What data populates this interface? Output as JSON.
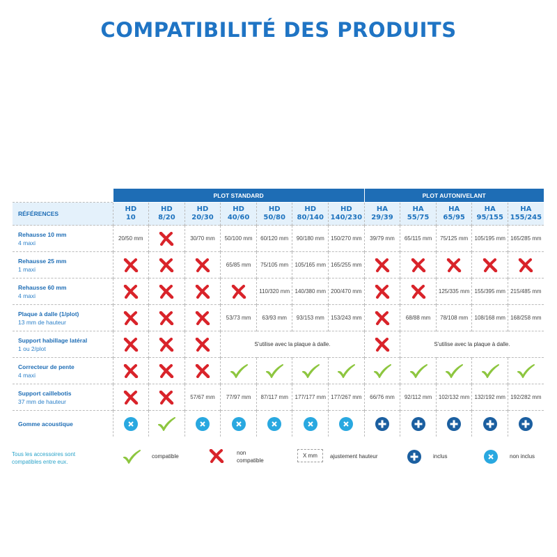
{
  "title": "COMPATIBILITÉ DES PRODUITS",
  "colors": {
    "title": "#1f74c4",
    "header": "#1e6db5",
    "cross": "#d9232a",
    "check": "#8dc63f",
    "inclus": "#1b5fa0",
    "non_inclus": "#29a8e0"
  },
  "groups": [
    {
      "label": "PLOT STANDARD",
      "span": 7
    },
    {
      "label": "PLOT AUTONIVELANT",
      "span": 5
    }
  ],
  "references_label": "RÉFÉRENCES",
  "columns": [
    [
      "HD",
      "10"
    ],
    [
      "HD",
      "8/20"
    ],
    [
      "HD",
      "20/30"
    ],
    [
      "HD",
      "40/60"
    ],
    [
      "HD",
      "50/80"
    ],
    [
      "HD",
      "80/140"
    ],
    [
      "HD",
      "140/230"
    ],
    [
      "HA",
      "29/39"
    ],
    [
      "HA",
      "55/75"
    ],
    [
      "HA",
      "65/95"
    ],
    [
      "HA",
      "95/155"
    ],
    [
      "HA",
      "155/245"
    ]
  ],
  "rows": [
    {
      "label": "Rehausse 10 mm",
      "sub": "4 maxi",
      "cells": [
        "20/50 mm",
        "x",
        "30/70 mm",
        "50/100 mm",
        "60/120 mm",
        "90/180 mm",
        "150/270 mm",
        "39/79 mm",
        "65/115 mm",
        "75/125 mm",
        "105/195 mm",
        "165/285 mm"
      ]
    },
    {
      "label": "Rehausse 25 mm",
      "sub": "1 maxi",
      "cells": [
        "x",
        "x",
        "x",
        "65/85 mm",
        "75/105 mm",
        "105/165 mm",
        "165/255 mm",
        "x",
        "x",
        "x",
        "x",
        "x"
      ]
    },
    {
      "label": "Rehausse 60 mm",
      "sub": "4 maxi",
      "cells": [
        "x",
        "x",
        "x",
        "x",
        "110/320 mm",
        "140/380 mm",
        "200/470 mm",
        "x",
        "x",
        "125/335 mm",
        "155/395 mm",
        "215/485 mm"
      ]
    },
    {
      "label": "Plaque à dalle (1/plot)",
      "sub": "13 mm de hauteur",
      "cells": [
        "x",
        "x",
        "x",
        "53/73 mm",
        "63/93 mm",
        "93/153 mm",
        "153/243 mm",
        "x",
        "68/88 mm",
        "78/108 mm",
        "108/168 mm",
        "168/258 mm"
      ]
    },
    {
      "label": "Support habillage latéral",
      "sub": "1 ou 2/plot",
      "cells": [
        "x",
        "x",
        "x",
        {
          "text": "S'utilise avec la plaque à dalle.",
          "span": 4
        },
        "x",
        {
          "text": "S'utilise avec la plaque à dalle.",
          "span": 4
        }
      ]
    },
    {
      "label": "Correcteur de pente",
      "sub": "4 maxi",
      "cells": [
        "x",
        "x",
        "x",
        "check",
        "check",
        "check",
        "check",
        "check",
        "check",
        "check",
        "check",
        "check"
      ]
    },
    {
      "label": "Support caillebotis",
      "sub": "37 mm de hauteur",
      "cells": [
        "x",
        "x",
        "57/67 mm",
        "77/97 mm",
        "87/117 mm",
        "177/177 mm",
        "177/267 mm",
        "66/76 mm",
        "92/112 mm",
        "102/132 mm",
        "132/192 mm",
        "192/282 mm"
      ]
    },
    {
      "label": "Gomme acoustique",
      "sub": "",
      "cells": [
        "nonincl",
        "check",
        "nonincl",
        "nonincl",
        "nonincl",
        "nonincl",
        "nonincl",
        "plus",
        "plus",
        "plus",
        "plus",
        "plus"
      ]
    }
  ],
  "legend": {
    "note_line1": "Tous les accessoires sont",
    "note_line2": "compatibles entre eux.",
    "compatible": "compatible",
    "non_compatible_1": "non",
    "non_compatible_2": "compatible",
    "xmm": "X mm",
    "ajustement": "ajustement hauteur",
    "inclus": "inclus",
    "non_inclus": "non inclus"
  }
}
